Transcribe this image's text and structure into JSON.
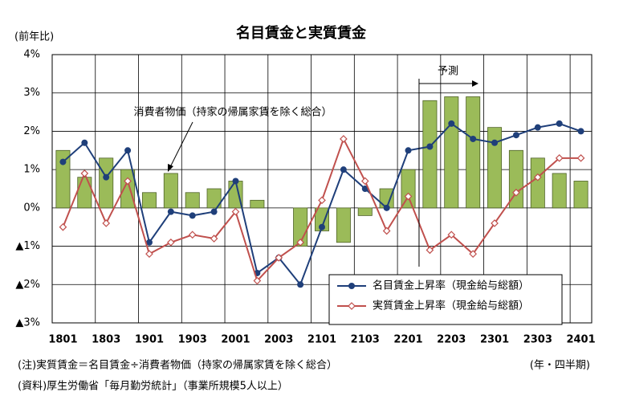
{
  "chart_data": {
    "type": "bar",
    "title": "名目賃金と実質賃金",
    "y_label": "(前年比)",
    "x_label": "(年・四半期)",
    "forecast_label": "予測",
    "notes": [
      "(注)実質賃金＝名目賃金÷消費者物価（持家の帰属家賃を除く総合）",
      "(資料)厚生労働省「毎月勤労統計」（事業所規模5人以上）"
    ],
    "categories": [
      "1801",
      null,
      "1803",
      null,
      "1901",
      null,
      "1903",
      null,
      "2001",
      null,
      "2003",
      null,
      "2101",
      null,
      "2103",
      null,
      "2201",
      null,
      "2203",
      null,
      "2301",
      null,
      "2303",
      null,
      "2401"
    ],
    "ylim": [
      -3,
      4
    ],
    "yticks": [
      {
        "value": -3,
        "label": "▲3%"
      },
      {
        "value": -2,
        "label": "▲2%"
      },
      {
        "value": -1,
        "label": "▲1%"
      },
      {
        "value": 0,
        "label": "0%"
      },
      {
        "value": 1,
        "label": "1%"
      },
      {
        "value": 2,
        "label": "2%"
      },
      {
        "value": 3,
        "label": "3%"
      },
      {
        "value": 4,
        "label": "4%"
      }
    ],
    "grid": true,
    "legend": "lower right",
    "series": [
      {
        "name": "消費者物価（持家の帰属家賃を除く総合）",
        "type": "bar",
        "color": "#9bbb59",
        "values": [
          1.5,
          0.8,
          1.3,
          1.0,
          0.4,
          0.9,
          0.4,
          0.5,
          0.7,
          0.2,
          0,
          -1.0,
          -0.6,
          -0.9,
          -0.2,
          0.5,
          1.0,
          2.8,
          2.9,
          2.9,
          2.1,
          1.5,
          1.3,
          0.9,
          0.7
        ]
      },
      {
        "name": "名目賃金上昇率（現金給与総額）",
        "type": "line",
        "color": "#1f3f7a",
        "marker": "circle",
        "values": [
          1.2,
          1.7,
          0.8,
          1.5,
          -0.9,
          -0.1,
          -0.2,
          -0.1,
          0.7,
          -1.7,
          -1.3,
          -2.0,
          -0.5,
          1.0,
          0.5,
          0.0,
          1.5,
          1.6,
          2.2,
          1.8,
          1.7,
          1.9,
          2.1,
          2.2,
          2.0
        ]
      },
      {
        "name": "実質賃金上昇率（現金給与総額）",
        "type": "line",
        "color": "#c0504d",
        "marker": "diamond",
        "values": [
          -0.5,
          0.9,
          -0.4,
          0.7,
          -1.2,
          -0.9,
          -0.7,
          -0.8,
          -0.1,
          -1.9,
          -1.3,
          -0.9,
          0.2,
          1.8,
          0.7,
          -0.6,
          0.3,
          -1.1,
          -0.7,
          -1.2,
          -0.4,
          0.4,
          0.8,
          1.3,
          1.3
        ]
      }
    ]
  }
}
